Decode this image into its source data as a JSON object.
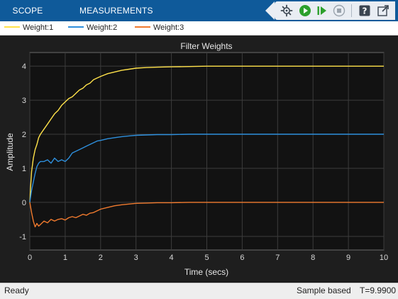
{
  "tabs": [
    {
      "label": "SCOPE"
    },
    {
      "label": "MEASUREMENTS"
    }
  ],
  "toolbar": {
    "icons": [
      "settings-icon",
      "run-icon",
      "step-forward-icon",
      "stop-icon",
      "help-icon",
      "undock-icon"
    ],
    "run_color": "#2ca02c"
  },
  "legend": [
    {
      "name": "Weight:1",
      "color": "#ffe24a"
    },
    {
      "name": "Weight:2",
      "color": "#2e8fdc"
    },
    {
      "name": "Weight:3",
      "color": "#f07a2e"
    }
  ],
  "chart_data": {
    "type": "line",
    "title": "Filter Weights",
    "xlabel": "Time (secs)",
    "ylabel": "Amplitude",
    "xlim": [
      0,
      10
    ],
    "ylim": [
      -1.4,
      4.4
    ],
    "xticks": [
      "0",
      "1",
      "2",
      "3",
      "4",
      "5",
      "6",
      "7",
      "8",
      "9",
      "10"
    ],
    "yticks": [
      "-1",
      "0",
      "1",
      "2",
      "3",
      "4"
    ],
    "grid": true,
    "background": "#121212",
    "series": [
      {
        "name": "Weight:1",
        "color": "#ffe24a",
        "x": [
          0,
          0.02,
          0.05,
          0.1,
          0.15,
          0.2,
          0.25,
          0.3,
          0.4,
          0.5,
          0.6,
          0.7,
          0.8,
          0.9,
          1.0,
          1.1,
          1.2,
          1.3,
          1.4,
          1.5,
          1.6,
          1.7,
          1.8,
          1.9,
          2.0,
          2.2,
          2.4,
          2.6,
          2.8,
          3.0,
          3.3,
          3.6,
          4.0,
          4.5,
          5.0,
          6.0,
          7.0,
          8.0,
          9.0,
          10.0
        ],
        "y": [
          0,
          0.4,
          0.9,
          1.3,
          1.55,
          1.7,
          1.9,
          2.0,
          2.15,
          2.3,
          2.45,
          2.6,
          2.7,
          2.85,
          2.95,
          3.05,
          3.1,
          3.2,
          3.3,
          3.35,
          3.45,
          3.5,
          3.6,
          3.65,
          3.7,
          3.78,
          3.83,
          3.88,
          3.91,
          3.94,
          3.96,
          3.97,
          3.98,
          3.99,
          4.0,
          4.0,
          4.0,
          4.0,
          4.0,
          4.0
        ]
      },
      {
        "name": "Weight:2",
        "color": "#2e8fdc",
        "x": [
          0,
          0.05,
          0.1,
          0.15,
          0.2,
          0.25,
          0.3,
          0.4,
          0.5,
          0.6,
          0.7,
          0.8,
          0.9,
          1.0,
          1.1,
          1.2,
          1.3,
          1.4,
          1.5,
          1.6,
          1.7,
          1.8,
          1.9,
          2.0,
          2.2,
          2.4,
          2.6,
          2.8,
          3.0,
          3.3,
          3.6,
          4.0,
          4.5,
          5.0,
          6.0,
          7.0,
          8.0,
          9.0,
          10.0
        ],
        "y": [
          0,
          0.35,
          0.6,
          0.85,
          1.05,
          1.15,
          1.2,
          1.2,
          1.25,
          1.15,
          1.3,
          1.2,
          1.25,
          1.2,
          1.3,
          1.45,
          1.5,
          1.55,
          1.6,
          1.65,
          1.7,
          1.75,
          1.8,
          1.82,
          1.87,
          1.9,
          1.93,
          1.95,
          1.97,
          1.98,
          1.99,
          1.99,
          2.0,
          2.0,
          2.0,
          2.0,
          2.0,
          2.0,
          2.0
        ]
      },
      {
        "name": "Weight:3",
        "color": "#f07a2e",
        "x": [
          0,
          0.05,
          0.1,
          0.15,
          0.2,
          0.25,
          0.3,
          0.4,
          0.5,
          0.6,
          0.7,
          0.8,
          0.9,
          1.0,
          1.1,
          1.2,
          1.3,
          1.4,
          1.5,
          1.6,
          1.7,
          1.8,
          1.9,
          2.0,
          2.2,
          2.4,
          2.6,
          2.8,
          3.0,
          3.3,
          3.6,
          4.0,
          4.5,
          5.0,
          6.0,
          7.0,
          8.0,
          9.0,
          10.0
        ],
        "y": [
          0,
          -0.3,
          -0.55,
          -0.72,
          -0.62,
          -0.7,
          -0.65,
          -0.55,
          -0.6,
          -0.5,
          -0.55,
          -0.5,
          -0.48,
          -0.52,
          -0.45,
          -0.42,
          -0.45,
          -0.4,
          -0.35,
          -0.38,
          -0.32,
          -0.3,
          -0.25,
          -0.2,
          -0.15,
          -0.1,
          -0.07,
          -0.05,
          -0.03,
          -0.02,
          -0.01,
          -0.01,
          0.0,
          0.0,
          0.0,
          0.0,
          0.0,
          0.0,
          0.0
        ]
      }
    ]
  },
  "status": {
    "left": "Ready",
    "mode": "Sample based",
    "time": "T=9.9900"
  }
}
